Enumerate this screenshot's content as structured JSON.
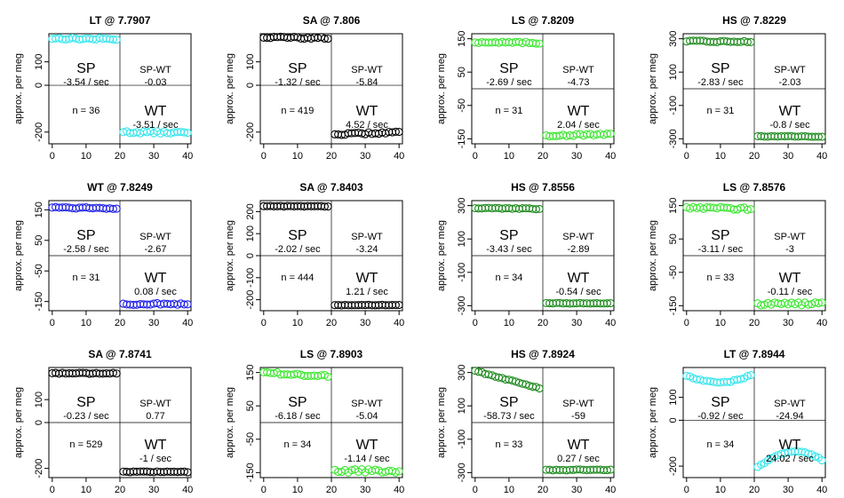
{
  "figure": {
    "y_axis_label": "approx. per meg",
    "colors": {
      "LT": "#36e5ec",
      "SA": "#000000",
      "LS": "#3ee632",
      "HS": "#1e8a1e",
      "WT": "#1e1ee8"
    }
  },
  "chart_data": [
    {
      "type": "scatter",
      "title": "LT @ 7.7907",
      "station": "LT",
      "ylim": [
        -250,
        220
      ],
      "yticks": [
        100,
        0,
        -200
      ],
      "xlim": [
        -1,
        41
      ],
      "xticks": [
        0,
        10,
        20,
        30,
        40
      ],
      "midline_y": 0,
      "n_label": "n = 36",
      "sp_rate": "-3.54 / sec",
      "spwt": "-0.03",
      "wt_rate": "-3.51 / sec",
      "sp": {
        "start": 200,
        "slope": -0.15,
        "noise": 4
      },
      "wt": {
        "start": -200,
        "slope": -0.15,
        "noise": 5
      }
    },
    {
      "type": "scatter",
      "title": "SA @ 7.806",
      "station": "SA",
      "ylim": [
        -250,
        220
      ],
      "yticks": [
        100,
        0,
        -200
      ],
      "xlim": [
        -1,
        41
      ],
      "xticks": [
        0,
        10,
        20,
        30,
        40
      ],
      "midline_y": 0,
      "n_label": "n = 419",
      "sp_rate": "-1.32 / sec",
      "spwt": "-5.84",
      "wt_rate": "4.52 / sec",
      "sp": {
        "start": 205,
        "slope": -0.2,
        "noise": 4
      },
      "wt": {
        "start": -210,
        "slope": 0.5,
        "noise": 4
      }
    },
    {
      "type": "scatter",
      "title": "LS @ 7.8209",
      "station": "LS",
      "ylim": [
        -165,
        165
      ],
      "yticks": [
        150,
        50,
        -50,
        -150
      ],
      "xlim": [
        -1,
        41
      ],
      "xticks": [
        0,
        10,
        20,
        30,
        40
      ],
      "midline_y": 0,
      "n_label": "n = 31",
      "sp_rate": "-2.69 / sec",
      "spwt": "-4.73",
      "wt_rate": "2.04 / sec",
      "sp": {
        "start": 140,
        "slope": -0.15,
        "noise": 3
      },
      "wt": {
        "start": -140,
        "slope": 0.15,
        "noise": 3
      }
    },
    {
      "type": "scatter",
      "title": "HS @ 7.8229",
      "station": "HS",
      "ylim": [
        -330,
        330
      ],
      "yticks": [
        300,
        100,
        -100,
        -300
      ],
      "xlim": [
        -1,
        41
      ],
      "xticks": [
        0,
        10,
        20,
        30,
        40
      ],
      "midline_y": 0,
      "n_label": "n = 31",
      "sp_rate": "-2.83 / sec",
      "spwt": "-2.03",
      "wt_rate": "-0.8 / sec",
      "sp": {
        "start": 285,
        "slope": -0.15,
        "noise": 4
      },
      "wt": {
        "start": -285,
        "slope": -0.05,
        "noise": 2
      }
    },
    {
      "type": "scatter",
      "title": "WT @ 7.8249",
      "station": "WT",
      "ylim": [
        -180,
        180
      ],
      "yticks": [
        150,
        50,
        -50,
        -150
      ],
      "xlim": [
        -1,
        41
      ],
      "xticks": [
        0,
        10,
        20,
        30,
        40
      ],
      "midline_y": 0,
      "n_label": "n = 31",
      "sp_rate": "-2.58 / sec",
      "spwt": "-2.67",
      "wt_rate": "0.08 / sec",
      "sp": {
        "start": 158,
        "slope": -0.15,
        "noise": 3
      },
      "wt": {
        "start": -158,
        "slope": 0.0,
        "noise": 3
      }
    },
    {
      "type": "scatter",
      "title": "SA @ 7.8403",
      "station": "SA",
      "ylim": [
        -250,
        250
      ],
      "yticks": [
        200,
        100,
        0,
        -100,
        -200
      ],
      "xlim": [
        -1,
        41
      ],
      "xticks": [
        0,
        10,
        20,
        30,
        40
      ],
      "midline_y": 0,
      "n_label": "n = 444",
      "sp_rate": "-2.02 / sec",
      "spwt": "-3.24",
      "wt_rate": "1.21 / sec",
      "sp": {
        "start": 225,
        "slope": -0.05,
        "noise": 1
      },
      "wt": {
        "start": -225,
        "slope": 0.05,
        "noise": 1
      }
    },
    {
      "type": "scatter",
      "title": "HS @ 7.8556",
      "station": "HS",
      "ylim": [
        -330,
        330
      ],
      "yticks": [
        300,
        100,
        -100,
        -300
      ],
      "xlim": [
        -1,
        41
      ],
      "xticks": [
        0,
        10,
        20,
        30,
        40
      ],
      "midline_y": 0,
      "n_label": "n = 34",
      "sp_rate": "-3.43 / sec",
      "spwt": "-2.89",
      "wt_rate": "-0.54 / sec",
      "sp": {
        "start": 285,
        "slope": -0.2,
        "noise": 3
      },
      "wt": {
        "start": -285,
        "slope": -0.05,
        "noise": 2
      }
    },
    {
      "type": "scatter",
      "title": "LS @ 7.8576",
      "station": "LS",
      "ylim": [
        -165,
        165
      ],
      "yticks": [
        150,
        50,
        -50,
        -150
      ],
      "xlim": [
        -1,
        41
      ],
      "xticks": [
        0,
        10,
        20,
        30,
        40
      ],
      "midline_y": 0,
      "n_label": "n = 33",
      "sp_rate": "-3.11 / sec",
      "spwt": "-3",
      "wt_rate": "-0.11 / sec",
      "sp": {
        "start": 145,
        "slope": -0.2,
        "noise": 4
      },
      "wt": {
        "start": -145,
        "slope": 0.05,
        "noise": 4
      }
    },
    {
      "type": "scatter",
      "title": "SA @ 7.8741",
      "station": "SA",
      "ylim": [
        -240,
        240
      ],
      "yticks": [
        100,
        0,
        -200
      ],
      "xlim": [
        -1,
        41
      ],
      "xticks": [
        0,
        10,
        20,
        30,
        40
      ],
      "midline_y": 0,
      "n_label": "n = 529",
      "sp_rate": "-0.23 / sec",
      "spwt": "0.77",
      "wt_rate": "-1 / sec",
      "sp": {
        "start": 215,
        "slope": -0.02,
        "noise": 2
      },
      "wt": {
        "start": -215,
        "slope": -0.02,
        "noise": 2
      }
    },
    {
      "type": "scatter",
      "title": "LS @ 7.8903",
      "station": "LS",
      "ylim": [
        -165,
        165
      ],
      "yticks": [
        150,
        50,
        -50,
        -150
      ],
      "xlim": [
        -1,
        41
      ],
      "xticks": [
        0,
        10,
        20,
        30,
        40
      ],
      "midline_y": 0,
      "n_label": "n = 34",
      "sp_rate": "-6.18 / sec",
      "spwt": "-5.04",
      "wt_rate": "-1.14 / sec",
      "sp": {
        "start": 150,
        "slope": -0.6,
        "noise": 4
      },
      "wt": {
        "start": -145,
        "slope": 0.0,
        "noise": 5
      }
    },
    {
      "type": "scatter",
      "title": "HS @ 7.8924",
      "station": "HS",
      "ylim": [
        -330,
        330
      ],
      "yticks": [
        300,
        100,
        -100,
        -300
      ],
      "xlim": [
        -1,
        41
      ],
      "xticks": [
        0,
        10,
        20,
        30,
        40
      ],
      "midline_y": 0,
      "n_label": "n = 33",
      "sp_rate": "-58.73 / sec",
      "spwt": "-59",
      "wt_rate": "0.27 / sec",
      "sp": {
        "start": 310,
        "slope": -5.5,
        "noise": 3
      },
      "wt": {
        "start": -285,
        "slope": 0.1,
        "noise": 3
      }
    },
    {
      "type": "scatter",
      "title": "LT @ 7.8944",
      "station": "LT",
      "ylim": [
        -250,
        230
      ],
      "yticks": [
        100,
        0,
        -200
      ],
      "xlim": [
        -1,
        41
      ],
      "xticks": [
        0,
        10,
        20,
        30,
        40
      ],
      "midline_y": 0,
      "n_label": "n = 34",
      "sp_rate": "-0.92 / sec",
      "spwt": "-24.94",
      "wt_rate": "24.02 / sec",
      "sp": {
        "start": 195,
        "slope": -0.3,
        "noise": 6,
        "shape": "dip"
      },
      "wt": {
        "start": -205,
        "slope": 2.0,
        "noise": 4,
        "shape": "hump"
      }
    }
  ]
}
